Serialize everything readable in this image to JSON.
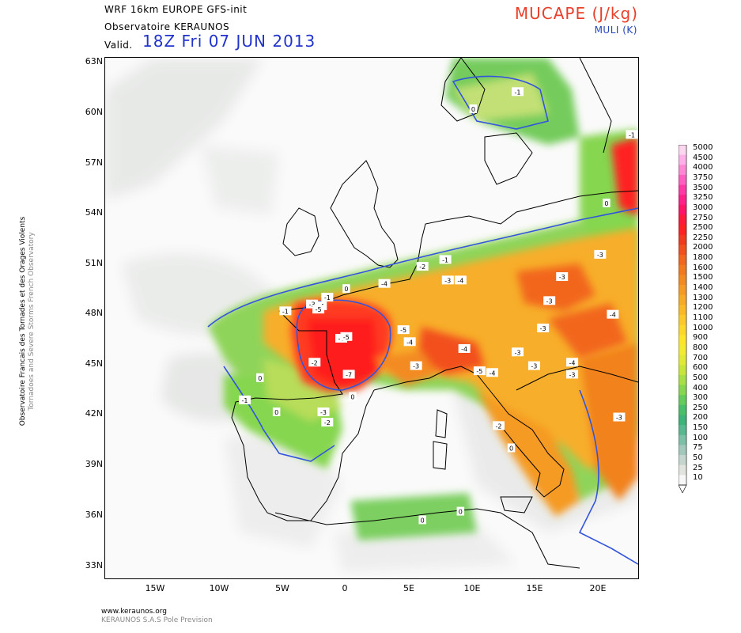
{
  "header": {
    "model": "WRF 16km EUROPE   GFS-init",
    "observatory": "Observatoire KERAUNOS",
    "valid_label": "Valid.",
    "valid_date": "18Z Fri 07 JUN 2013",
    "field_title": "MUCAPE (J/kg)",
    "field_subtitle": "MULI (K)"
  },
  "map": {
    "region": "Europe",
    "extent_lon": [
      -19,
      23
    ],
    "extent_lat": [
      32.6,
      63
    ],
    "lat_ticks": [
      "63N",
      "60N",
      "57N",
      "54N",
      "51N",
      "48N",
      "45N",
      "42N",
      "39N",
      "36N",
      "33N"
    ],
    "lon_ticks": [
      "15W",
      "10W",
      "5W",
      "0",
      "5E",
      "10E",
      "15E",
      "20E"
    ],
    "contour_color": "#3355dd",
    "land_outline_color": "#000000",
    "muli_labels": [
      {
        "text": "-1",
        "lon": 13.5,
        "lat": 61.0
      },
      {
        "text": "0",
        "lon": 10.0,
        "lat": 60.0
      },
      {
        "text": "-1",
        "lon": 22.5,
        "lat": 58.5
      },
      {
        "text": "0",
        "lon": 20.5,
        "lat": 54.5
      },
      {
        "text": "-3",
        "lon": 20.0,
        "lat": 51.5
      },
      {
        "text": "-2",
        "lon": 6.0,
        "lat": 50.8
      },
      {
        "text": "-1",
        "lon": 7.8,
        "lat": 51.2
      },
      {
        "text": "-3",
        "lon": 8.0,
        "lat": 50.0
      },
      {
        "text": "-4",
        "lon": 9.0,
        "lat": 50.0
      },
      {
        "text": "-3",
        "lon": 17.0,
        "lat": 50.2
      },
      {
        "text": "-4",
        "lon": 3.0,
        "lat": 49.8
      },
      {
        "text": "-1",
        "lon": -1.5,
        "lat": 49.0
      },
      {
        "text": "-3",
        "lon": -2.7,
        "lat": 48.6
      },
      {
        "text": "-4",
        "lon": -2.0,
        "lat": 48.5
      },
      {
        "text": "-5",
        "lon": -2.2,
        "lat": 48.3
      },
      {
        "text": "-1",
        "lon": -4.8,
        "lat": 48.2
      },
      {
        "text": "-3",
        "lon": 16.0,
        "lat": 48.8
      },
      {
        "text": "-4",
        "lon": 21.0,
        "lat": 48.0
      },
      {
        "text": "-5",
        "lon": 4.5,
        "lat": 47.1
      },
      {
        "text": "-3",
        "lon": 15.5,
        "lat": 47.2
      },
      {
        "text": "-6",
        "lon": -0.4,
        "lat": 46.6
      },
      {
        "text": "-5",
        "lon": 0.0,
        "lat": 46.7
      },
      {
        "text": "-4",
        "lon": 5.0,
        "lat": 46.4
      },
      {
        "text": "-4",
        "lon": 9.3,
        "lat": 46.0
      },
      {
        "text": "-3",
        "lon": 13.5,
        "lat": 45.8
      },
      {
        "text": "-2",
        "lon": -2.5,
        "lat": 45.2
      },
      {
        "text": "-3",
        "lon": 5.5,
        "lat": 45.0
      },
      {
        "text": "-5",
        "lon": 10.5,
        "lat": 44.7
      },
      {
        "text": "-4",
        "lon": 11.5,
        "lat": 44.6
      },
      {
        "text": "-3",
        "lon": 14.8,
        "lat": 45.0
      },
      {
        "text": "-4",
        "lon": 17.8,
        "lat": 45.2
      },
      {
        "text": "-7",
        "lon": 0.2,
        "lat": 44.5
      },
      {
        "text": "-3",
        "lon": 17.8,
        "lat": 44.5
      },
      {
        "text": "0",
        "lon": -6.8,
        "lat": 44.3
      },
      {
        "text": "0",
        "lon": 0.5,
        "lat": 43.2
      },
      {
        "text": "-3",
        "lon": -1.8,
        "lat": 42.3
      },
      {
        "text": "-1",
        "lon": -8.0,
        "lat": 43.0
      },
      {
        "text": "0",
        "lon": -5.5,
        "lat": 42.3
      },
      {
        "text": "-2",
        "lon": -1.5,
        "lat": 41.7
      },
      {
        "text": "0",
        "lon": 13.0,
        "lat": 40.2
      },
      {
        "text": "-2",
        "lon": 12.0,
        "lat": 41.5
      },
      {
        "text": "-3",
        "lon": 21.5,
        "lat": 42.0
      },
      {
        "text": "0",
        "lon": 6.0,
        "lat": 36.0
      },
      {
        "text": "0",
        "lon": 9.0,
        "lat": 36.5
      },
      {
        "text": "0",
        "lon": 0.0,
        "lat": 49.5
      }
    ]
  },
  "colorbar": {
    "labels": [
      "5000",
      "4500",
      "4000",
      "3750",
      "3500",
      "3250",
      "3000",
      "2750",
      "2500",
      "2250",
      "2000",
      "1800",
      "1600",
      "1500",
      "1400",
      "1300",
      "1200",
      "1100",
      "1000",
      "900",
      "800",
      "700",
      "600",
      "500",
      "400",
      "300",
      "250",
      "200",
      "150",
      "100",
      "75",
      "50",
      "25",
      "10"
    ],
    "colors": [
      "#ffd6f0",
      "#ffb0e6",
      "#ff88d6",
      "#ff5fc2",
      "#ff3aa8",
      "#ff2088",
      "#ff1466",
      "#ff1a3a",
      "#ff2222",
      "#f23a1e",
      "#f2501e",
      "#f2661e",
      "#f27a1e",
      "#f38a20",
      "#f59a22",
      "#f7aa24",
      "#f9ba26",
      "#fbca28",
      "#fdd82a",
      "#ffe42c",
      "#f4ea30",
      "#e0ea34",
      "#c8e63a",
      "#a8df44",
      "#86d650",
      "#64cc5c",
      "#48c06a",
      "#3cb47a",
      "#58b890",
      "#7cc0a8",
      "#a0cabc",
      "#c4d6ce",
      "#e2e4e0",
      "#f7f7f7"
    ]
  },
  "credits": {
    "side_line1": "Observatoire Francais des Tornades et des Orages Violents",
    "side_line2": "Tornadoes and Severe Storms French Observatory",
    "footer_line1": "www.keraunos.org",
    "footer_line2": "KERAUNOS S.A.S Pole Prevision"
  }
}
